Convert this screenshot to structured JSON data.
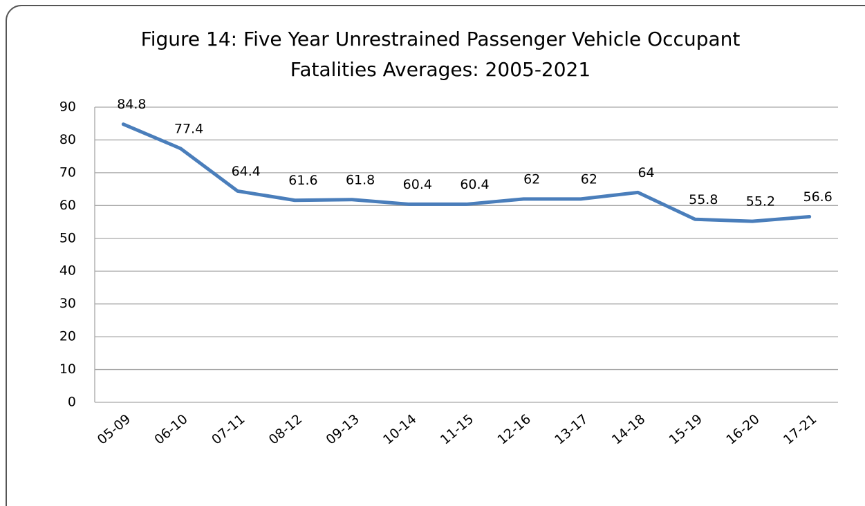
{
  "chart_data": {
    "type": "line",
    "title": [
      "Figure 14: Five Year Unrestrained Passenger Vehicle Occupant",
      "Fatalities Averages: 2005-2021"
    ],
    "categories": [
      "05-09",
      "06-10",
      "07-11",
      "08-12",
      "09-13",
      "10-14",
      "11-15",
      "12-16",
      "13-17",
      "14-18",
      "15-19",
      "16-20",
      "17-21"
    ],
    "values": [
      84.8,
      77.4,
      64.4,
      61.6,
      61.8,
      60.4,
      60.4,
      62,
      62,
      64,
      55.8,
      55.2,
      56.6
    ],
    "color": "#4a7ebb",
    "ylim": [
      0,
      90
    ],
    "yticks": [
      0,
      10,
      20,
      30,
      40,
      50,
      60,
      70,
      80,
      90
    ],
    "grid": true
  }
}
